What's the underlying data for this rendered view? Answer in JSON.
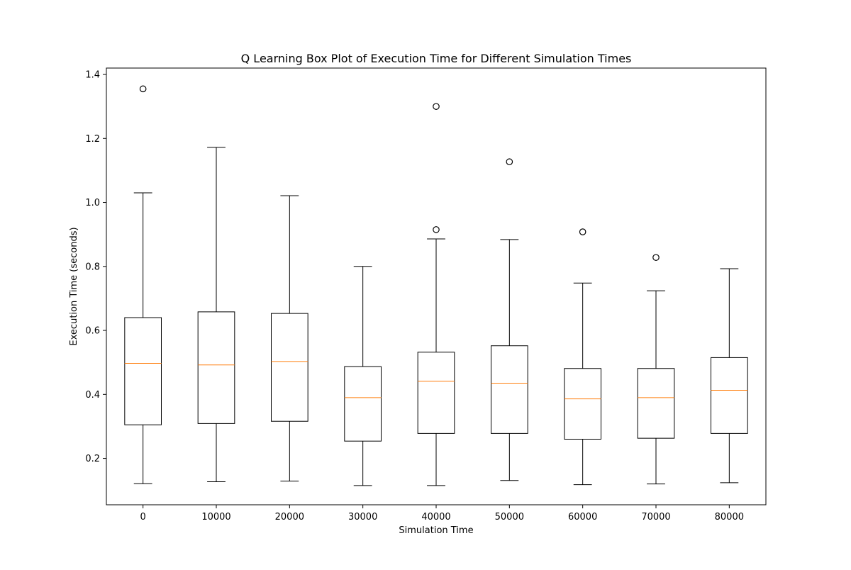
{
  "chart_data": {
    "type": "box",
    "title": "Q Learning Box Plot of Execution Time for Different Simulation Times",
    "xlabel": "Simulation Time",
    "ylabel": "Execution Time (seconds)",
    "ylim": [
      0.055,
      1.42
    ],
    "yticks": [
      0.2,
      0.4,
      0.6,
      0.8,
      1.0,
      1.2,
      1.4
    ],
    "ytick_labels": [
      "0.2",
      "0.4",
      "0.6",
      "0.8",
      "1.0",
      "1.2",
      "1.4"
    ],
    "categories": [
      "0",
      "10000",
      "20000",
      "30000",
      "40000",
      "50000",
      "60000",
      "70000",
      "80000"
    ],
    "boxes": [
      {
        "category": "0",
        "whisker_low": 0.121,
        "q1": 0.305,
        "median": 0.497,
        "q3": 0.64,
        "whisker_high": 1.03,
        "outliers": [
          1.355
        ]
      },
      {
        "category": "10000",
        "whisker_low": 0.127,
        "q1": 0.309,
        "median": 0.492,
        "q3": 0.658,
        "whisker_high": 1.172,
        "outliers": []
      },
      {
        "category": "20000",
        "whisker_low": 0.129,
        "q1": 0.316,
        "median": 0.503,
        "q3": 0.653,
        "whisker_high": 1.021,
        "outliers": []
      },
      {
        "category": "30000",
        "whisker_low": 0.115,
        "q1": 0.254,
        "median": 0.39,
        "q3": 0.487,
        "whisker_high": 0.8,
        "outliers": []
      },
      {
        "category": "40000",
        "whisker_low": 0.115,
        "q1": 0.278,
        "median": 0.441,
        "q3": 0.532,
        "whisker_high": 0.886,
        "outliers": [
          0.915,
          1.3
        ]
      },
      {
        "category": "50000",
        "whisker_low": 0.131,
        "q1": 0.278,
        "median": 0.435,
        "q3": 0.552,
        "whisker_high": 0.884,
        "outliers": [
          1.127
        ]
      },
      {
        "category": "60000",
        "whisker_low": 0.118,
        "q1": 0.26,
        "median": 0.386,
        "q3": 0.481,
        "whisker_high": 0.748,
        "outliers": [
          0.908
        ]
      },
      {
        "category": "70000",
        "whisker_low": 0.12,
        "q1": 0.263,
        "median": 0.39,
        "q3": 0.481,
        "whisker_high": 0.724,
        "outliers": [
          0.828
        ]
      },
      {
        "category": "80000",
        "whisker_low": 0.124,
        "q1": 0.278,
        "median": 0.413,
        "q3": 0.515,
        "whisker_high": 0.793,
        "outliers": []
      }
    ],
    "grid": false,
    "colors": {
      "box": "#000000",
      "median": "#ff7f0e",
      "background": "#ffffff"
    }
  }
}
